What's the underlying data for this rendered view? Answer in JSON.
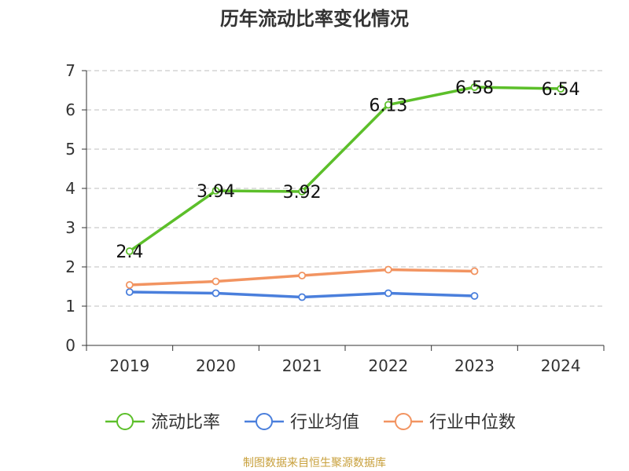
{
  "title": "历年流动比率变化情况",
  "source": "制图数据来自恒生聚源数据库",
  "colors": {
    "ratio": "#5cbf2a",
    "industry_avg": "#4a7fdc",
    "industry_median": "#f29461",
    "grid": "#cccccc",
    "axis": "#333333"
  },
  "chart_data": {
    "type": "line",
    "title": "历年流动比率变化情况",
    "categories": [
      "2019",
      "2020",
      "2021",
      "2022",
      "2023",
      "2024"
    ],
    "ylim": [
      0,
      7
    ],
    "yticks": [
      0,
      1,
      2,
      3,
      4,
      5,
      6,
      7
    ],
    "grid": true,
    "legend_position": "bottom",
    "series": [
      {
        "name": "流动比率",
        "color_key": "ratio",
        "values": [
          2.4,
          3.94,
          3.92,
          6.13,
          6.58,
          6.54
        ],
        "labels": [
          "2.4",
          "3.94",
          "3.92",
          "6.13",
          "6.58",
          "6.54"
        ]
      },
      {
        "name": "行业均值",
        "color_key": "industry_avg",
        "values": [
          1.36,
          1.33,
          1.23,
          1.33,
          1.26,
          null
        ]
      },
      {
        "name": "行业中位数",
        "color_key": "industry_median",
        "values": [
          1.54,
          1.63,
          1.78,
          1.93,
          1.89,
          null
        ]
      }
    ]
  }
}
